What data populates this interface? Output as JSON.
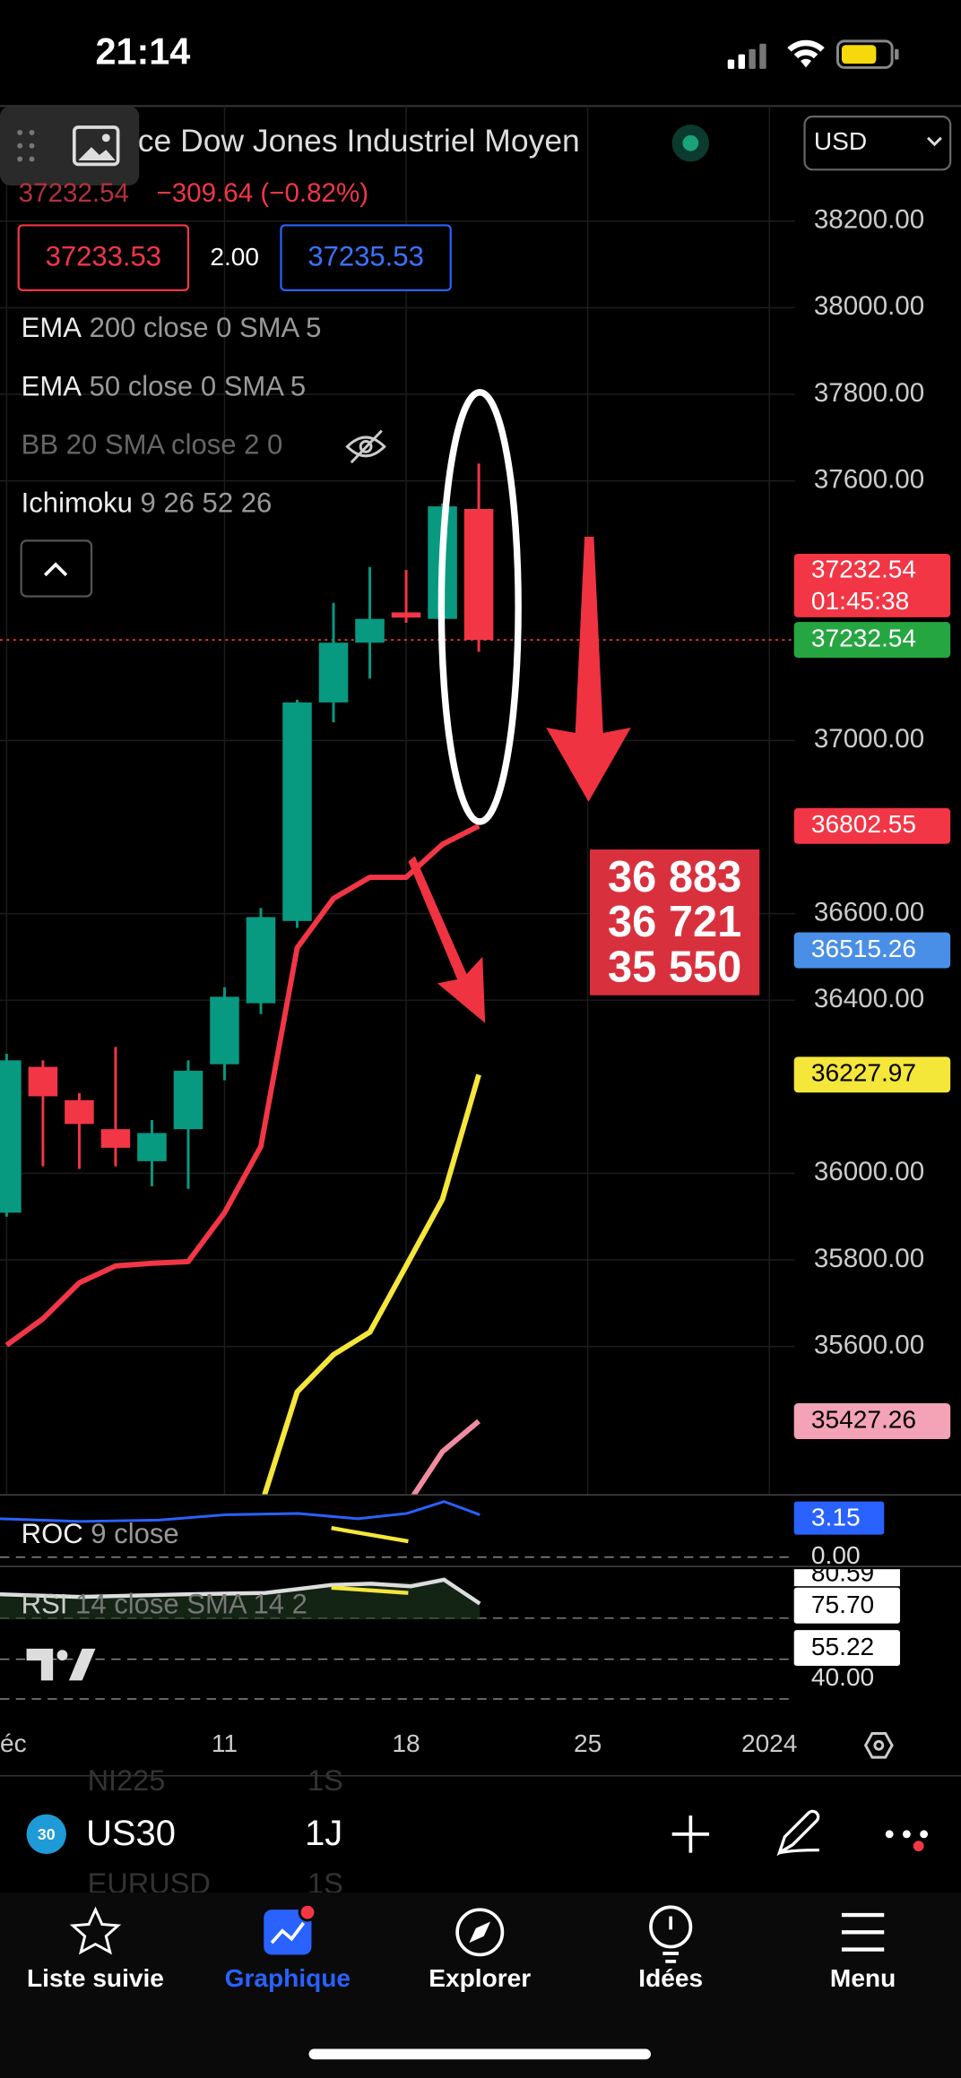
{
  "status_bar": {
    "time": "21:14"
  },
  "header": {
    "symbol_name": "ce Dow Jones Industriel Moyen",
    "last": "37232.54",
    "change": "−309.64 (−0.82%)",
    "bid": "37233.53",
    "spread": "2.00",
    "ask": "37235.53",
    "currency": "USD"
  },
  "indicators": [
    {
      "name": "EMA",
      "params": "200 close 0 SMA 5"
    },
    {
      "name": "EMA",
      "params": "50 close 0 SMA 5"
    },
    {
      "name": "BB",
      "params": "20 SMA close 2 0"
    },
    {
      "name": "Ichimoku",
      "params": "9 26 52 26"
    }
  ],
  "chart_data": {
    "type": "candlestick",
    "x": [
      1,
      4,
      5,
      6,
      7,
      8,
      11,
      12,
      13,
      14,
      15,
      18,
      19,
      20
    ],
    "open": [
      35909,
      36246,
      36169,
      36102,
      36028,
      36102,
      36252,
      36393,
      36583,
      37088,
      37226,
      37296,
      37281,
      37535
    ],
    "high": [
      36276,
      36261,
      36185,
      36292,
      36123,
      36261,
      36430,
      36613,
      37094,
      37318,
      37401,
      37394,
      37548,
      37640
    ],
    "low": [
      35900,
      36016,
      36010,
      36016,
      35970,
      35964,
      36215,
      36368,
      36567,
      37042,
      37143,
      37272,
      37272,
      37205
    ],
    "close": [
      36261,
      36178,
      36114,
      36059,
      36093,
      36237,
      36408,
      36592,
      37088,
      37226,
      37281,
      37284,
      37541,
      37232.54
    ],
    "up_color": "#089981",
    "down_color": "#f23645",
    "lines": [
      {
        "color": "#f23645",
        "values": [
          35603,
          35664,
          35747,
          35786,
          35792,
          35796,
          35909,
          36062,
          36521,
          36635,
          36684,
          36684,
          36760,
          36802.55
        ]
      },
      {
        "color": "#f5e63a",
        "values": [
          null,
          null,
          null,
          null,
          null,
          null,
          null,
          35230,
          35495,
          35581,
          35633,
          35786,
          35940,
          36227.97
        ]
      },
      {
        "color": "#f08ca0",
        "values": [
          null,
          null,
          null,
          null,
          null,
          null,
          null,
          null,
          null,
          null,
          null,
          35230,
          35357,
          35427.26
        ]
      }
    ],
    "ylim": [
      35257,
      38466
    ],
    "yticks": [
      {
        "value": 38200,
        "label": "38200.00"
      },
      {
        "value": 38000,
        "label": "38000.00"
      },
      {
        "value": 37800,
        "label": "37800.00"
      },
      {
        "value": 37600,
        "label": "37600.00"
      },
      {
        "value": 37000,
        "label": "37000.00"
      },
      {
        "value": 36600,
        "label": "36600.00"
      },
      {
        "value": 36400,
        "label": "36400.00"
      },
      {
        "value": 36000,
        "label": "36000.00"
      },
      {
        "value": 35800,
        "label": "35800.00"
      },
      {
        "value": 35600,
        "label": "35600.00"
      }
    ],
    "xticks": [
      {
        "value": 1,
        "label": "éc"
      },
      11,
      18,
      25,
      {
        "value": 32,
        "label": "2024"
      }
    ],
    "grid": true,
    "price_badges": [
      {
        "value": 37232.54,
        "color": "#26a641",
        "text_color": "#ffffff"
      },
      {
        "value": 36802.55,
        "color": "#f23645",
        "text_color": "#ffffff"
      },
      {
        "value": 36515.26,
        "color": "#4a8fe7",
        "text_color": "#ffffff"
      },
      {
        "value": 36227.97,
        "color": "#f5e63a",
        "text_color": "#000000"
      },
      {
        "value": 35427.26,
        "color": "#f4a3b6",
        "text_color": "#000000"
      }
    ],
    "countdown": "01:45:38",
    "annotation": [
      "36 883",
      "36 721",
      "35 550"
    ]
  },
  "oscillators": {
    "roc": {
      "name": "ROC",
      "params": "9 close",
      "value": "3.15",
      "zero": "0.00"
    },
    "rsi": {
      "name": "RSI",
      "params": "14 close SMA 14 2",
      "upper_partial": "80.59",
      "value": "75.70",
      "sma": "55.22",
      "lower": "40.00"
    }
  },
  "toolbar": {
    "ghost_top": "NI225",
    "ghost_top_tf": "1S",
    "badge": "30",
    "symbol": "US30",
    "timeframe": "1J",
    "ghost_bottom": "EURUSD",
    "ghost_bottom_tf": "1S"
  },
  "nav": [
    "Liste suivie",
    "Graphique",
    "Explorer",
    "Idées",
    "Menu"
  ]
}
